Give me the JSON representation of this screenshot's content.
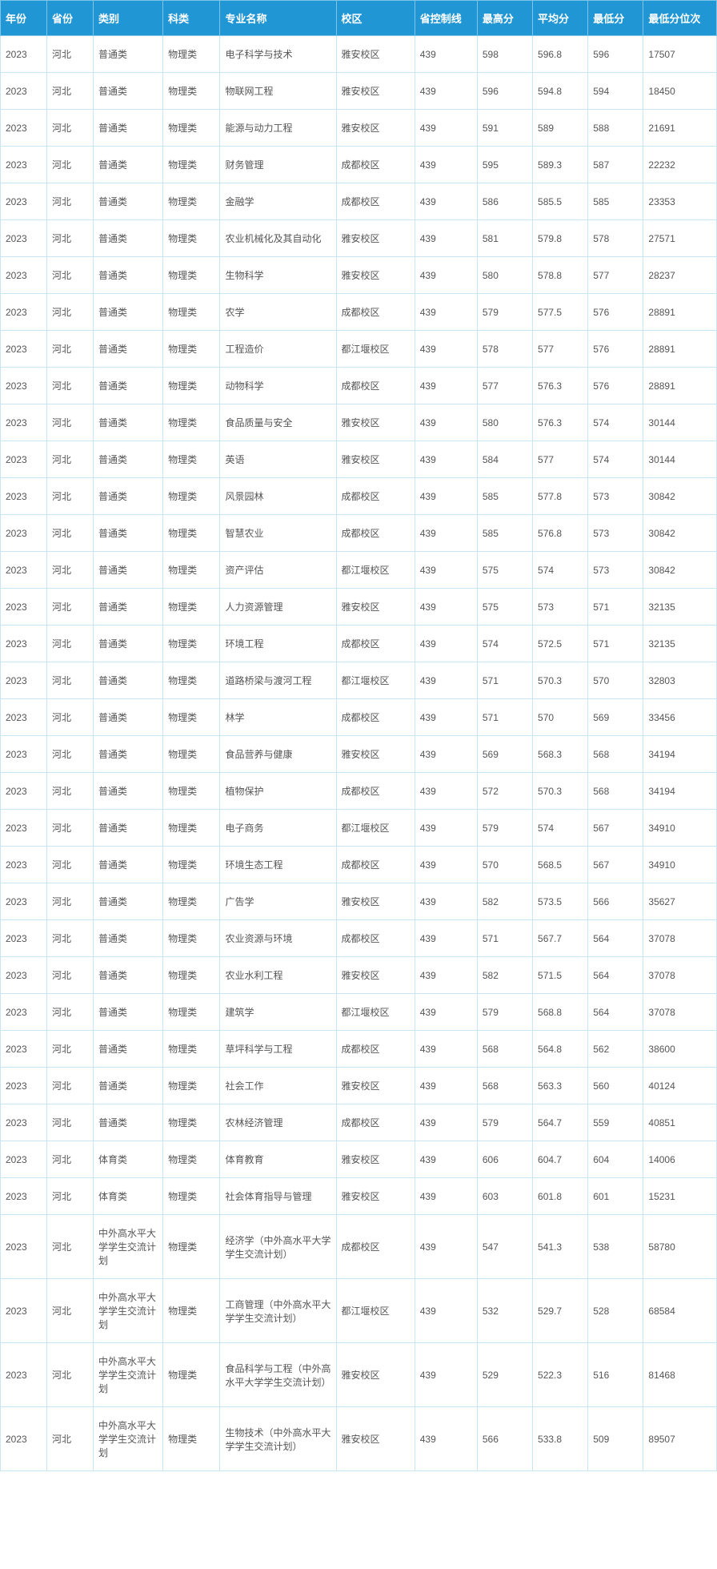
{
  "table": {
    "columns": [
      "年份",
      "省份",
      "类别",
      "科类",
      "专业名称",
      "校区",
      "省控制线",
      "最高分",
      "平均分",
      "最低分",
      "最低分位次"
    ],
    "rows": [
      [
        "2023",
        "河北",
        "普通类",
        "物理类",
        "电子科学与技术",
        "雅安校区",
        "439",
        "598",
        "596.8",
        "596",
        "17507"
      ],
      [
        "2023",
        "河北",
        "普通类",
        "物理类",
        "物联网工程",
        "雅安校区",
        "439",
        "596",
        "594.8",
        "594",
        "18450"
      ],
      [
        "2023",
        "河北",
        "普通类",
        "物理类",
        "能源与动力工程",
        "雅安校区",
        "439",
        "591",
        "589",
        "588",
        "21691"
      ],
      [
        "2023",
        "河北",
        "普通类",
        "物理类",
        "财务管理",
        "成都校区",
        "439",
        "595",
        "589.3",
        "587",
        "22232"
      ],
      [
        "2023",
        "河北",
        "普通类",
        "物理类",
        "金融学",
        "成都校区",
        "439",
        "586",
        "585.5",
        "585",
        "23353"
      ],
      [
        "2023",
        "河北",
        "普通类",
        "物理类",
        "农业机械化及其自动化",
        "雅安校区",
        "439",
        "581",
        "579.8",
        "578",
        "27571"
      ],
      [
        "2023",
        "河北",
        "普通类",
        "物理类",
        "生物科学",
        "雅安校区",
        "439",
        "580",
        "578.8",
        "577",
        "28237"
      ],
      [
        "2023",
        "河北",
        "普通类",
        "物理类",
        "农学",
        "成都校区",
        "439",
        "579",
        "577.5",
        "576",
        "28891"
      ],
      [
        "2023",
        "河北",
        "普通类",
        "物理类",
        "工程造价",
        "都江堰校区",
        "439",
        "578",
        "577",
        "576",
        "28891"
      ],
      [
        "2023",
        "河北",
        "普通类",
        "物理类",
        "动物科学",
        "成都校区",
        "439",
        "577",
        "576.3",
        "576",
        "28891"
      ],
      [
        "2023",
        "河北",
        "普通类",
        "物理类",
        "食品质量与安全",
        "雅安校区",
        "439",
        "580",
        "576.3",
        "574",
        "30144"
      ],
      [
        "2023",
        "河北",
        "普通类",
        "物理类",
        "英语",
        "雅安校区",
        "439",
        "584",
        "577",
        "574",
        "30144"
      ],
      [
        "2023",
        "河北",
        "普通类",
        "物理类",
        "风景园林",
        "成都校区",
        "439",
        "585",
        "577.8",
        "573",
        "30842"
      ],
      [
        "2023",
        "河北",
        "普通类",
        "物理类",
        "智慧农业",
        "成都校区",
        "439",
        "585",
        "576.8",
        "573",
        "30842"
      ],
      [
        "2023",
        "河北",
        "普通类",
        "物理类",
        "资产评估",
        "都江堰校区",
        "439",
        "575",
        "574",
        "573",
        "30842"
      ],
      [
        "2023",
        "河北",
        "普通类",
        "物理类",
        "人力资源管理",
        "雅安校区",
        "439",
        "575",
        "573",
        "571",
        "32135"
      ],
      [
        "2023",
        "河北",
        "普通类",
        "物理类",
        "环境工程",
        "成都校区",
        "439",
        "574",
        "572.5",
        "571",
        "32135"
      ],
      [
        "2023",
        "河北",
        "普通类",
        "物理类",
        "道路桥梁与渡河工程",
        "都江堰校区",
        "439",
        "571",
        "570.3",
        "570",
        "32803"
      ],
      [
        "2023",
        "河北",
        "普通类",
        "物理类",
        "林学",
        "成都校区",
        "439",
        "571",
        "570",
        "569",
        "33456"
      ],
      [
        "2023",
        "河北",
        "普通类",
        "物理类",
        "食品营养与健康",
        "雅安校区",
        "439",
        "569",
        "568.3",
        "568",
        "34194"
      ],
      [
        "2023",
        "河北",
        "普通类",
        "物理类",
        "植物保护",
        "成都校区",
        "439",
        "572",
        "570.3",
        "568",
        "34194"
      ],
      [
        "2023",
        "河北",
        "普通类",
        "物理类",
        "电子商务",
        "都江堰校区",
        "439",
        "579",
        "574",
        "567",
        "34910"
      ],
      [
        "2023",
        "河北",
        "普通类",
        "物理类",
        "环境生态工程",
        "成都校区",
        "439",
        "570",
        "568.5",
        "567",
        "34910"
      ],
      [
        "2023",
        "河北",
        "普通类",
        "物理类",
        "广告学",
        "雅安校区",
        "439",
        "582",
        "573.5",
        "566",
        "35627"
      ],
      [
        "2023",
        "河北",
        "普通类",
        "物理类",
        "农业资源与环境",
        "成都校区",
        "439",
        "571",
        "567.7",
        "564",
        "37078"
      ],
      [
        "2023",
        "河北",
        "普通类",
        "物理类",
        "农业水利工程",
        "雅安校区",
        "439",
        "582",
        "571.5",
        "564",
        "37078"
      ],
      [
        "2023",
        "河北",
        "普通类",
        "物理类",
        "建筑学",
        "都江堰校区",
        "439",
        "579",
        "568.8",
        "564",
        "37078"
      ],
      [
        "2023",
        "河北",
        "普通类",
        "物理类",
        "草坪科学与工程",
        "成都校区",
        "439",
        "568",
        "564.8",
        "562",
        "38600"
      ],
      [
        "2023",
        "河北",
        "普通类",
        "物理类",
        "社会工作",
        "雅安校区",
        "439",
        "568",
        "563.3",
        "560",
        "40124"
      ],
      [
        "2023",
        "河北",
        "普通类",
        "物理类",
        "农林经济管理",
        "成都校区",
        "439",
        "579",
        "564.7",
        "559",
        "40851"
      ],
      [
        "2023",
        "河北",
        "体育类",
        "物理类",
        "体育教育",
        "雅安校区",
        "439",
        "606",
        "604.7",
        "604",
        "14006"
      ],
      [
        "2023",
        "河北",
        "体育类",
        "物理类",
        "社会体育指导与管理",
        "雅安校区",
        "439",
        "603",
        "601.8",
        "601",
        "15231"
      ],
      [
        "2023",
        "河北",
        "中外高水平大学学生交流计划",
        "物理类",
        "经济学（中外高水平大学学生交流计划）",
        "成都校区",
        "439",
        "547",
        "541.3",
        "538",
        "58780"
      ],
      [
        "2023",
        "河北",
        "中外高水平大学学生交流计划",
        "物理类",
        "工商管理（中外高水平大学学生交流计划）",
        "都江堰校区",
        "439",
        "532",
        "529.7",
        "528",
        "68584"
      ],
      [
        "2023",
        "河北",
        "中外高水平大学学生交流计划",
        "物理类",
        "食品科学与工程（中外高水平大学学生交流计划）",
        "雅安校区",
        "439",
        "529",
        "522.3",
        "516",
        "81468"
      ],
      [
        "2023",
        "河北",
        "中外高水平大学学生交流计划",
        "物理类",
        "生物技术（中外高水平大学学生交流计划）",
        "雅安校区",
        "439",
        "566",
        "533.8",
        "509",
        "89507"
      ]
    ],
    "header_bg": "#2196d4",
    "header_fg": "#ffffff",
    "cell_fg": "#555555",
    "border_color": "#c8e6f5"
  }
}
